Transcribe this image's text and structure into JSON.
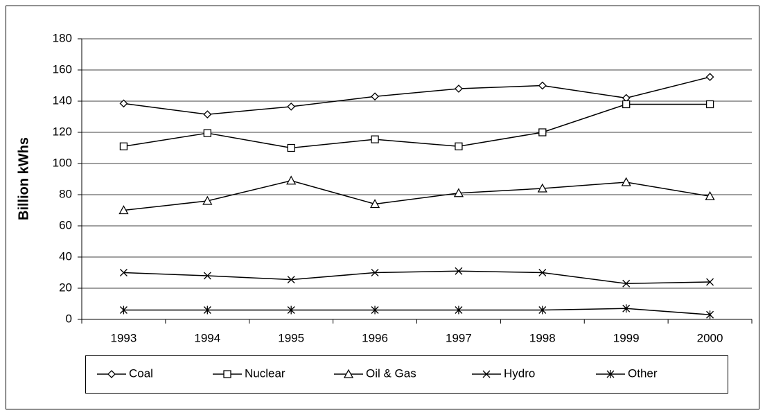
{
  "chart_data": {
    "type": "line",
    "y_label": "Billion kWhs",
    "categories": [
      "1993",
      "1994",
      "1995",
      "1996",
      "1997",
      "1998",
      "1999",
      "2000"
    ],
    "series": [
      {
        "name": "Coal",
        "marker": "diamond",
        "color": "#000000",
        "values": [
          138.5,
          131.5,
          136.5,
          143,
          148,
          150,
          142,
          155.5
        ]
      },
      {
        "name": "Nuclear",
        "marker": "square",
        "color": "#000000",
        "values": [
          111,
          119.5,
          110,
          115.5,
          111,
          120,
          138,
          138
        ]
      },
      {
        "name": "Oil & Gas",
        "marker": "triangle",
        "color": "#000000",
        "values": [
          70,
          76,
          89,
          74,
          81,
          84,
          88,
          79
        ]
      },
      {
        "name": "Hydro",
        "marker": "x",
        "color": "#000000",
        "values": [
          30,
          28,
          25.5,
          30,
          31,
          30,
          23,
          24
        ]
      },
      {
        "name": "Other",
        "marker": "star",
        "color": "#000000",
        "values": [
          6,
          6,
          6,
          6,
          6,
          6,
          7,
          3
        ]
      }
    ],
    "ylim": [
      0,
      180
    ],
    "yticks": [
      0,
      20,
      40,
      60,
      80,
      100,
      120,
      140,
      160,
      180
    ],
    "grid": true,
    "legend": "bottom"
  }
}
